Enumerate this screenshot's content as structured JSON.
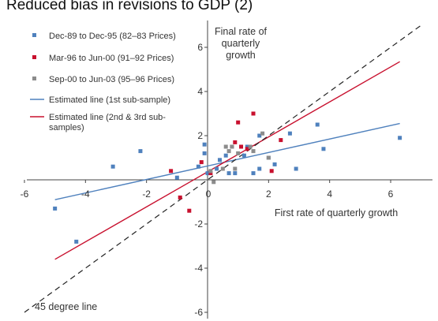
{
  "chart_data": {
    "type": "scatter",
    "title": "Reduced bias in revisions to GDP (2)",
    "xlabel": "First rate of quarterly growth",
    "ylabel": [
      "Final rate of",
      "quarterly",
      "growth"
    ],
    "xlim": [
      -6,
      7
    ],
    "ylim": [
      -6,
      7
    ],
    "xticks": [
      -6,
      -4,
      -2,
      0,
      2,
      4,
      6
    ],
    "yticks": [
      -6,
      -4,
      -2,
      0,
      2,
      4,
      6
    ],
    "grid": false,
    "legend_position": "top-left",
    "series": [
      {
        "name": "Dec-89 to Dec-95 (82–83 Prices)",
        "kind": "points",
        "color": "#4f81bd",
        "points": [
          [
            -5.0,
            -1.3
          ],
          [
            -4.3,
            -2.8
          ],
          [
            -3.1,
            0.6
          ],
          [
            -2.2,
            1.3
          ],
          [
            -1.0,
            0.1
          ],
          [
            -0.3,
            0.6
          ],
          [
            -0.1,
            1.2
          ],
          [
            -0.1,
            1.6
          ],
          [
            0.0,
            0.3
          ],
          [
            0.3,
            0.5
          ],
          [
            0.4,
            0.9
          ],
          [
            0.6,
            1.1
          ],
          [
            0.7,
            0.3
          ],
          [
            0.9,
            0.3
          ],
          [
            1.2,
            1.1
          ],
          [
            1.3,
            1.5
          ],
          [
            1.5,
            0.3
          ],
          [
            1.7,
            0.5
          ],
          [
            1.7,
            2.0
          ],
          [
            2.0,
            1.0
          ],
          [
            2.2,
            0.7
          ],
          [
            2.7,
            2.1
          ],
          [
            2.9,
            0.5
          ],
          [
            3.6,
            2.5
          ],
          [
            3.8,
            1.4
          ],
          [
            6.3,
            1.9
          ]
        ]
      },
      {
        "name": "Mar-96 to Jun-00 (91–92 Prices)",
        "kind": "points",
        "color": "#c8102e",
        "points": [
          [
            -1.2,
            0.4
          ],
          [
            -0.9,
            -0.8
          ],
          [
            -0.6,
            -1.4
          ],
          [
            -0.2,
            0.8
          ],
          [
            0.1,
            0.3
          ],
          [
            0.8,
            1.5
          ],
          [
            0.9,
            1.7
          ],
          [
            1.0,
            2.6
          ],
          [
            1.1,
            1.5
          ],
          [
            1.3,
            1.4
          ],
          [
            1.5,
            3.0
          ],
          [
            2.1,
            0.4
          ],
          [
            2.4,
            1.8
          ]
        ]
      },
      {
        "name": "Sep-00 to Jun-03 (95–96 Prices)",
        "kind": "points",
        "color": "#8c8c8c",
        "points": [
          [
            0.1,
            0.4
          ],
          [
            0.2,
            -0.1
          ],
          [
            0.5,
            0.5
          ],
          [
            0.6,
            1.5
          ],
          [
            0.7,
            1.3
          ],
          [
            0.8,
            1.5
          ],
          [
            0.9,
            0.5
          ],
          [
            1.0,
            1.2
          ],
          [
            1.4,
            1.5
          ],
          [
            1.5,
            1.3
          ],
          [
            1.8,
            2.1
          ],
          [
            2.0,
            1.0
          ]
        ]
      },
      {
        "name": "Estimated line (1st sub-sample)",
        "kind": "line",
        "color": "#4f81bd",
        "points": [
          [
            -5.0,
            -0.9
          ],
          [
            6.3,
            2.55
          ]
        ]
      },
      {
        "name": "Estimated line (2nd & 3rd sub-samples)",
        "kind": "line",
        "color": "#c8102e",
        "points": [
          [
            -5.0,
            -3.6
          ],
          [
            6.3,
            5.35
          ]
        ]
      },
      {
        "name": "45 degree line",
        "kind": "dashed-line",
        "color": "#222222",
        "points": [
          [
            -6.0,
            -6.0
          ],
          [
            7.0,
            7.0
          ]
        ]
      }
    ],
    "legend": [
      "Dec-89 to Dec-95 (82–83 Prices)",
      "Mar-96 to Jun-00 (91–92 Prices)",
      "Sep-00 to Jun-03 (95–96 Prices)",
      "Estimated line (1st sub-sample)",
      [
        "Estimated line (2nd & 3rd sub-",
        "samples)"
      ]
    ],
    "annotations": {
      "forty_five": "45 degree line"
    }
  }
}
